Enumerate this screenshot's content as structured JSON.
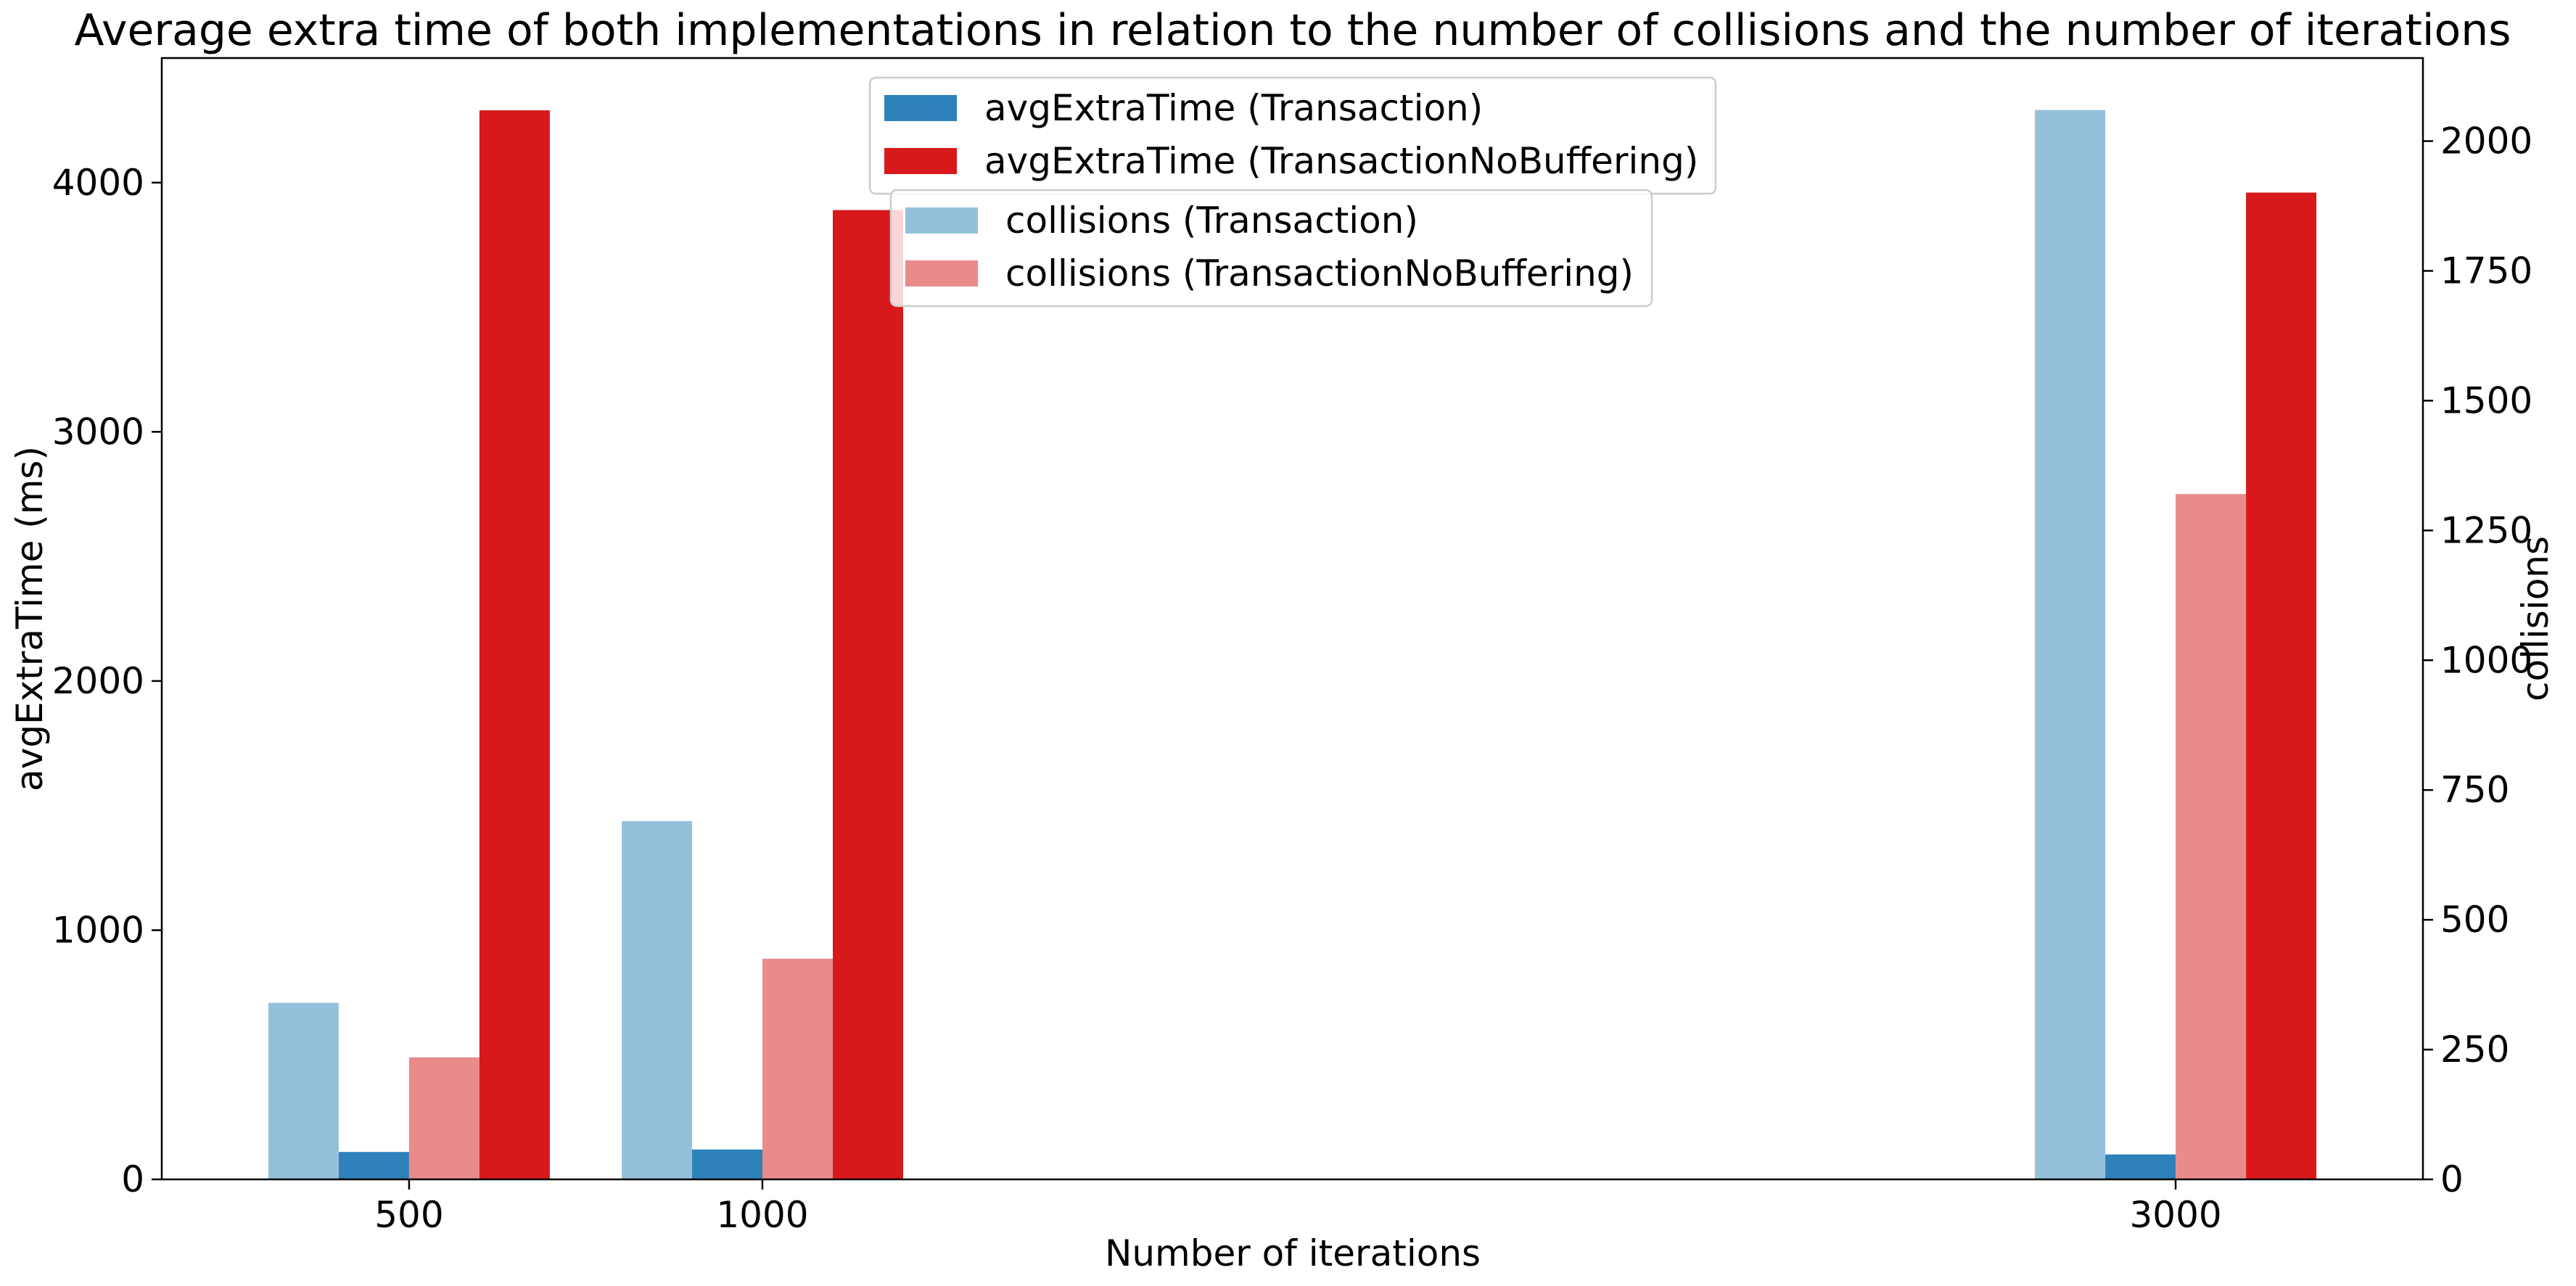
{
  "chart_data": {
    "type": "bar",
    "title": "Average extra time of both implementations in relation to the number of collisions and the number of iterations",
    "xlabel": "Number of iterations",
    "ylabel": "avgExtraTime (ms)",
    "y2label": "collisions",
    "categories": [
      "500",
      "1000",
      "3000"
    ],
    "x_values": [
      500,
      1000,
      3000
    ],
    "xlim": [
      150,
      3350
    ],
    "ylim": [
      0,
      4500
    ],
    "y2lim": [
      0,
      2160
    ],
    "y_ticks": [
      0,
      1000,
      2000,
      3000,
      4000
    ],
    "y2_ticks": [
      0,
      250,
      500,
      750,
      1000,
      1250,
      1500,
      1750,
      2000
    ],
    "grid": false,
    "series": [
      {
        "name": "collisions (Transaction)",
        "axis": "right",
        "color": "#95c0dc",
        "offset_index": 0,
        "values": [
          340,
          690,
          2060
        ]
      },
      {
        "name": "avgExtraTime (Transaction)",
        "axis": "left",
        "color": "#2e81b9",
        "offset_index": 1,
        "values": [
          110,
          120,
          100
        ]
      },
      {
        "name": "collisions (TransactionNoBuffering)",
        "axis": "right",
        "color": "#e98b8b",
        "offset_index": 2,
        "values": [
          235,
          425,
          1320
        ]
      },
      {
        "name": "avgExtraTime (TransactionNoBuffering)",
        "axis": "left",
        "color": "#d8191c",
        "offset_index": 3,
        "values": [
          4290,
          3890,
          3960
        ]
      }
    ],
    "legends": [
      {
        "placement": "upper-center",
        "entries": [
          "avgExtraTime (Transaction)",
          "avgExtraTime (TransactionNoBuffering)"
        ]
      },
      {
        "placement": "upper-center",
        "entries": [
          "collisions (Transaction)",
          "collisions (TransactionNoBuffering)"
        ]
      }
    ]
  }
}
